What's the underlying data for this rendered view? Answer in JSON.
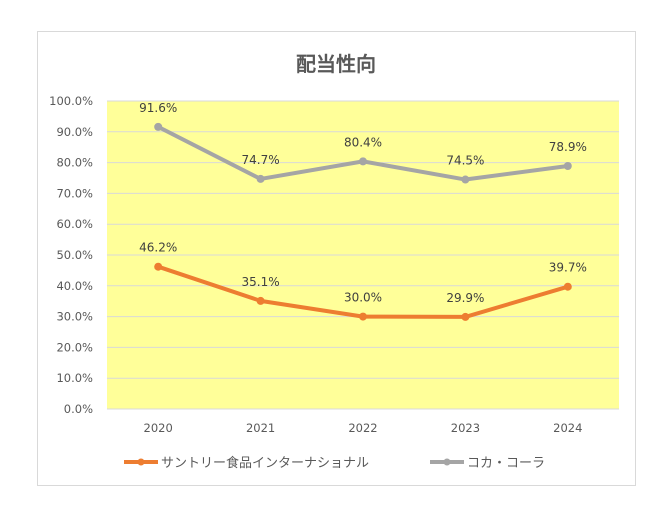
{
  "chart_data": {
    "type": "line",
    "title": "配当性向",
    "xlabel": "",
    "ylabel": "",
    "categories": [
      "2020",
      "2021",
      "2022",
      "2023",
      "2024"
    ],
    "ylim": [
      0,
      100
    ],
    "yticks": [
      "0.0%",
      "10.0%",
      "20.0%",
      "30.0%",
      "40.0%",
      "50.0%",
      "60.0%",
      "70.0%",
      "80.0%",
      "90.0%",
      "100.0%"
    ],
    "grid": true,
    "plot_background": "#ffff99",
    "legend_position": "bottom",
    "series": [
      {
        "name": "サントリー食品インターナショナル",
        "color": "#ed7d31",
        "values": [
          46.2,
          35.1,
          30.0,
          29.9,
          39.7
        ],
        "labels": [
          "46.2%",
          "35.1%",
          "30.0%",
          "29.9%",
          "39.7%"
        ]
      },
      {
        "name": "コカ・コーラ",
        "color": "#a5a5a5",
        "values": [
          91.6,
          74.7,
          80.4,
          74.5,
          78.9
        ],
        "labels": [
          "91.6%",
          "74.7%",
          "80.4%",
          "74.5%",
          "78.9%"
        ]
      }
    ]
  }
}
